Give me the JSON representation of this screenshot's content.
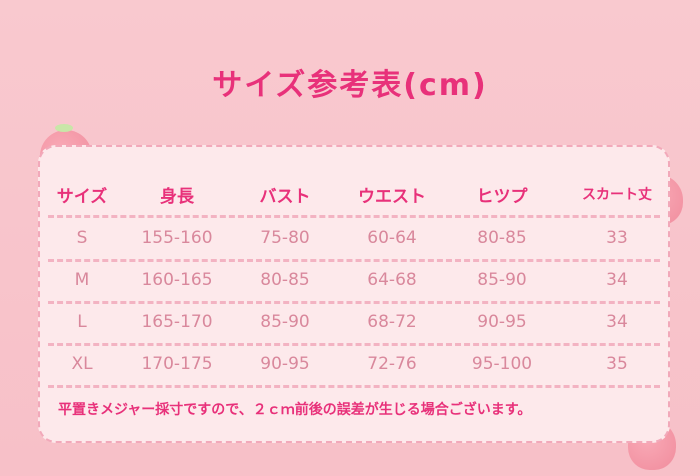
{
  "title": "サイズ参考表(cm)",
  "colors": {
    "accent": "#e8317a",
    "values": "#d9889c",
    "card": "#fde9eb",
    "border": "#f2a9ba"
  },
  "headers": [
    "サイズ",
    "身長",
    "バスト",
    "ウエスト",
    "ヒツプ",
    "スカート丈"
  ],
  "rows": [
    [
      "S",
      "155-160",
      "75-80",
      "60-64",
      "80-85",
      "33"
    ],
    [
      "M",
      "160-165",
      "80-85",
      "64-68",
      "85-90",
      "34"
    ],
    [
      "L",
      "165-170",
      "85-90",
      "68-72",
      "90-95",
      "34"
    ],
    [
      "XL",
      "170-175",
      "90-95",
      "72-76",
      "95-100",
      "35"
    ]
  ],
  "note": "平置きメジャー採寸ですので、２ｃｍ前後の誤差が生じる場合ございます。"
}
